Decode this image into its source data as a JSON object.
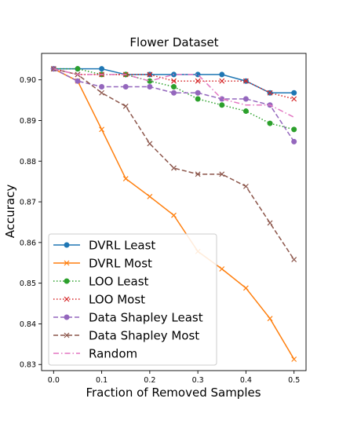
{
  "chart_data": {
    "type": "line",
    "title": "Flower Dataset",
    "xlabel": "Fraction of Removed Samples",
    "ylabel": "Accuracy",
    "x": [
      0.0,
      0.05,
      0.1,
      0.15,
      0.2,
      0.25,
      0.3,
      0.35,
      0.4,
      0.45,
      0.5
    ],
    "xlim": [
      -0.025,
      0.525
    ],
    "ylim": [
      0.8285,
      0.9065
    ],
    "xticks": [
      "0.0",
      "0.1",
      "0.2",
      "0.3",
      "0.4",
      "0.5"
    ],
    "xtick_values": [
      0.0,
      0.1,
      0.2,
      0.3,
      0.4,
      0.5
    ],
    "yticks": [
      "0.83",
      "0.84",
      "0.85",
      "0.86",
      "0.87",
      "0.88",
      "0.89",
      "0.90"
    ],
    "ytick_values": [
      0.83,
      0.84,
      0.85,
      0.86,
      0.87,
      0.88,
      0.89,
      0.9
    ],
    "grid": false,
    "legend_position": "lower-left",
    "series": [
      {
        "name": "DVRL Least",
        "color": "#1f77b4",
        "style": "solid",
        "marker": "circle",
        "values": [
          0.9027,
          0.9027,
          0.9027,
          0.9013,
          0.9013,
          0.9013,
          0.9013,
          0.9013,
          0.8997,
          0.8968,
          0.8968
        ]
      },
      {
        "name": "DVRL Most",
        "color": "#ff7f0e",
        "style": "solid",
        "marker": "x",
        "values": [
          0.9027,
          0.8997,
          0.8878,
          0.8757,
          0.8713,
          0.8667,
          0.8578,
          0.8535,
          0.8488,
          0.8413,
          0.8313
        ]
      },
      {
        "name": "LOO Least",
        "color": "#2ca02c",
        "style": "dotted",
        "marker": "circle",
        "values": [
          0.9027,
          0.9027,
          0.9013,
          0.9013,
          0.8997,
          0.8983,
          0.8953,
          0.8938,
          0.8923,
          0.8893,
          0.8878
        ]
      },
      {
        "name": "LOO Most",
        "color": "#d62728",
        "style": "dotted",
        "marker": "x",
        "values": [
          0.9027,
          0.9013,
          0.9013,
          0.9013,
          0.9013,
          0.8997,
          0.8997,
          0.8997,
          0.8997,
          0.8968,
          0.8953
        ]
      },
      {
        "name": "Data Shapley Least",
        "color": "#9467bd",
        "style": "dashed",
        "marker": "circle",
        "values": [
          0.9027,
          0.8997,
          0.8983,
          0.8983,
          0.8983,
          0.8968,
          0.8968,
          0.8953,
          0.8953,
          0.8938,
          0.8848
        ]
      },
      {
        "name": "Data Shapley Most",
        "color": "#8c564b",
        "style": "dashed",
        "marker": "x",
        "values": [
          0.9027,
          0.9013,
          0.8968,
          0.8935,
          0.8843,
          0.8783,
          0.8768,
          0.8768,
          0.8738,
          0.8648,
          0.8558
        ]
      },
      {
        "name": "Random",
        "color": "#e377c2",
        "style": "dashdot",
        "marker": "none",
        "values": [
          0.9027,
          0.9013,
          0.9013,
          0.9013,
          0.8997,
          0.9013,
          0.9013,
          0.8953,
          0.8938,
          0.8938,
          0.8908
        ]
      }
    ]
  }
}
